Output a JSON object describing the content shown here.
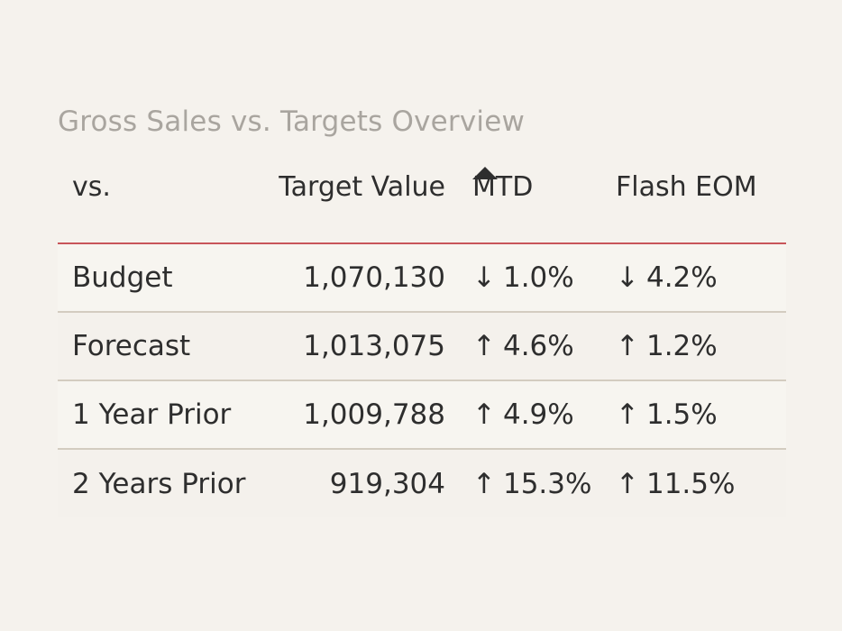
{
  "title": "Gross Sales vs. Targets Overview",
  "colors": {
    "background": "#f5f2ed",
    "title": "#a9a59f",
    "header_rule": "#c8555a",
    "row_rule": "#d3ccc0",
    "text": "#2e2e2e"
  },
  "chart_data": {
    "type": "table",
    "title": "Gross Sales vs. Targets Overview",
    "columns": [
      "vs.",
      "Target Value",
      "MTD",
      "Flash EOM"
    ],
    "sorted_column": "MTD",
    "sort_indicator_icon": "triangle-up-icon",
    "rows": [
      {
        "vs": "Budget",
        "target_value": "1,070,130",
        "mtd_dir": "↓",
        "mtd": "1.0%",
        "flash_dir": "↓",
        "flash_eom": "4.2%"
      },
      {
        "vs": "Forecast",
        "target_value": "1,013,075",
        "mtd_dir": "↑",
        "mtd": "4.6%",
        "flash_dir": "↑",
        "flash_eom": "1.2%"
      },
      {
        "vs": "1 Year Prior",
        "target_value": "1,009,788",
        "mtd_dir": "↑",
        "mtd": "4.9%",
        "flash_dir": "↑",
        "flash_eom": "1.5%"
      },
      {
        "vs": "2 Years Prior",
        "target_value": "919,304",
        "mtd_dir": "↑",
        "mtd": "15.3%",
        "flash_dir": "↑",
        "flash_eom": "11.5%"
      }
    ]
  }
}
